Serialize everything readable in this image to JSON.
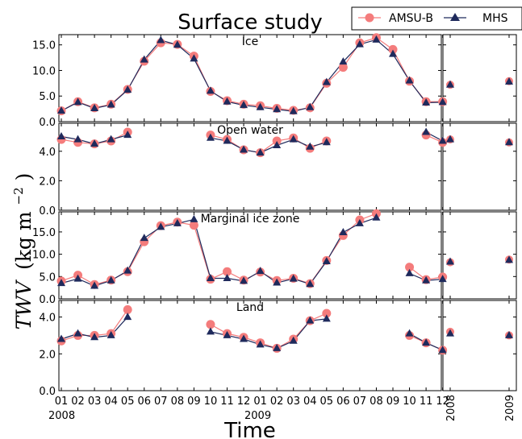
{
  "chart_data": {
    "type": "line",
    "title": "Surface study",
    "xlabel": "Time",
    "ylabel": "TWV (kg m⁻²)",
    "ylabel_main": "TWV",
    "ylabel_unit": "(kg m",
    "ylabel_exp": "−2",
    "ylabel_close": ")",
    "x_ticks": [
      "01",
      "02",
      "03",
      "04",
      "05",
      "06",
      "07",
      "08",
      "09",
      "10",
      "11",
      "12",
      "01",
      "02",
      "03",
      "04",
      "05",
      "06",
      "07",
      "08",
      "09",
      "10",
      "11",
      "12"
    ],
    "year_labels": [
      "2008",
      "2009"
    ],
    "side_ticks": [
      "2008",
      "2009"
    ],
    "legend": [
      {
        "name": "AMSU-B",
        "color": "#f47c7c",
        "marker": "circle"
      },
      {
        "name": "MHS",
        "color": "#1f2a5c",
        "marker": "triangle"
      }
    ],
    "legend_position": "top-right",
    "panels": [
      {
        "label": "Ice",
        "ylim": [
          0,
          17
        ],
        "yticks": [
          "0.0",
          "5.0",
          "10.0",
          "15.0"
        ],
        "yvals": [
          0,
          5,
          10,
          15
        ],
        "amsu": [
          2.1,
          3.9,
          2.7,
          3.4,
          6.3,
          11.8,
          15.4,
          15.1,
          12.8,
          5.9,
          4.1,
          3.4,
          3.1,
          2.6,
          2.2,
          2.7,
          7.5,
          10.6,
          15.4,
          16.4,
          14.1,
          7.9,
          3.9,
          3.9
        ],
        "mhs": [
          2.1,
          3.8,
          2.6,
          3.3,
          6.2,
          12.1,
          15.9,
          15.0,
          12.3,
          6.0,
          3.9,
          3.2,
          2.8,
          2.4,
          2.0,
          2.8,
          7.7,
          11.7,
          15.1,
          16.0,
          13.2,
          8.0,
          3.7,
          3.8
        ],
        "side_amsu": [
          7.2,
          7.9
        ],
        "side_mhs": [
          7.2,
          7.8
        ]
      },
      {
        "label": "Open water",
        "ylim": [
          0,
          5.9
        ],
        "yticks": [
          "0.0",
          "2.0",
          "4.0"
        ],
        "yvals": [
          0,
          2,
          4
        ],
        "amsu": [
          4.8,
          4.6,
          4.5,
          4.7,
          5.3,
          null,
          null,
          null,
          null,
          5.1,
          4.8,
          4.1,
          3.9,
          4.7,
          4.9,
          4.2,
          4.7,
          null,
          null,
          null,
          null,
          null,
          5.1,
          4.6
        ],
        "mhs": [
          5.0,
          4.8,
          4.5,
          4.8,
          5.1,
          null,
          null,
          null,
          null,
          4.9,
          4.7,
          4.1,
          3.9,
          4.4,
          4.8,
          4.3,
          4.6,
          null,
          null,
          null,
          null,
          null,
          5.3,
          4.7
        ],
        "side_amsu": [
          4.8,
          4.6
        ],
        "side_mhs": [
          4.8,
          4.6
        ]
      },
      {
        "label": "Marginal ice zone",
        "ylim": [
          0,
          19.5
        ],
        "yticks": [
          "0.0",
          "5.0",
          "10.0",
          "15.0"
        ],
        "yvals": [
          0,
          5,
          10,
          15
        ],
        "amsu": [
          4.0,
          5.3,
          3.2,
          4.2,
          6.1,
          12.8,
          16.4,
          17.2,
          16.5,
          4.4,
          6.1,
          4.2,
          6.0,
          4.1,
          4.6,
          3.4,
          8.6,
          14.2,
          17.7,
          19.1,
          null,
          7.1,
          4.3,
          4.9
        ],
        "mhs": [
          3.5,
          4.5,
          2.9,
          4.1,
          6.3,
          13.6,
          16.1,
          16.9,
          17.8,
          4.6,
          4.6,
          4.0,
          6.2,
          3.6,
          4.5,
          3.3,
          8.4,
          14.9,
          16.9,
          18.2,
          null,
          5.7,
          4.1,
          4.4
        ],
        "side_amsu": [
          8.2,
          8.8
        ],
        "side_mhs": [
          8.3,
          8.7
        ]
      },
      {
        "label": "Land",
        "ylim": [
          0,
          4.9
        ],
        "yticks": [
          "0.0",
          "2.0",
          "4.0"
        ],
        "yvals": [
          0,
          2,
          4
        ],
        "amsu": [
          2.7,
          3.0,
          3.0,
          3.1,
          4.4,
          null,
          null,
          null,
          null,
          3.6,
          3.1,
          2.9,
          2.6,
          2.3,
          2.8,
          3.8,
          4.2,
          null,
          null,
          null,
          null,
          3.0,
          2.6,
          2.2
        ],
        "mhs": [
          2.8,
          3.1,
          2.9,
          3.0,
          4.0,
          null,
          null,
          null,
          null,
          3.2,
          3.0,
          2.8,
          2.5,
          2.3,
          2.7,
          3.8,
          3.9,
          null,
          null,
          null,
          null,
          3.1,
          2.6,
          2.2
        ],
        "side_amsu": [
          3.2,
          3.0
        ],
        "side_mhs": [
          3.1,
          3.0
        ]
      }
    ]
  }
}
